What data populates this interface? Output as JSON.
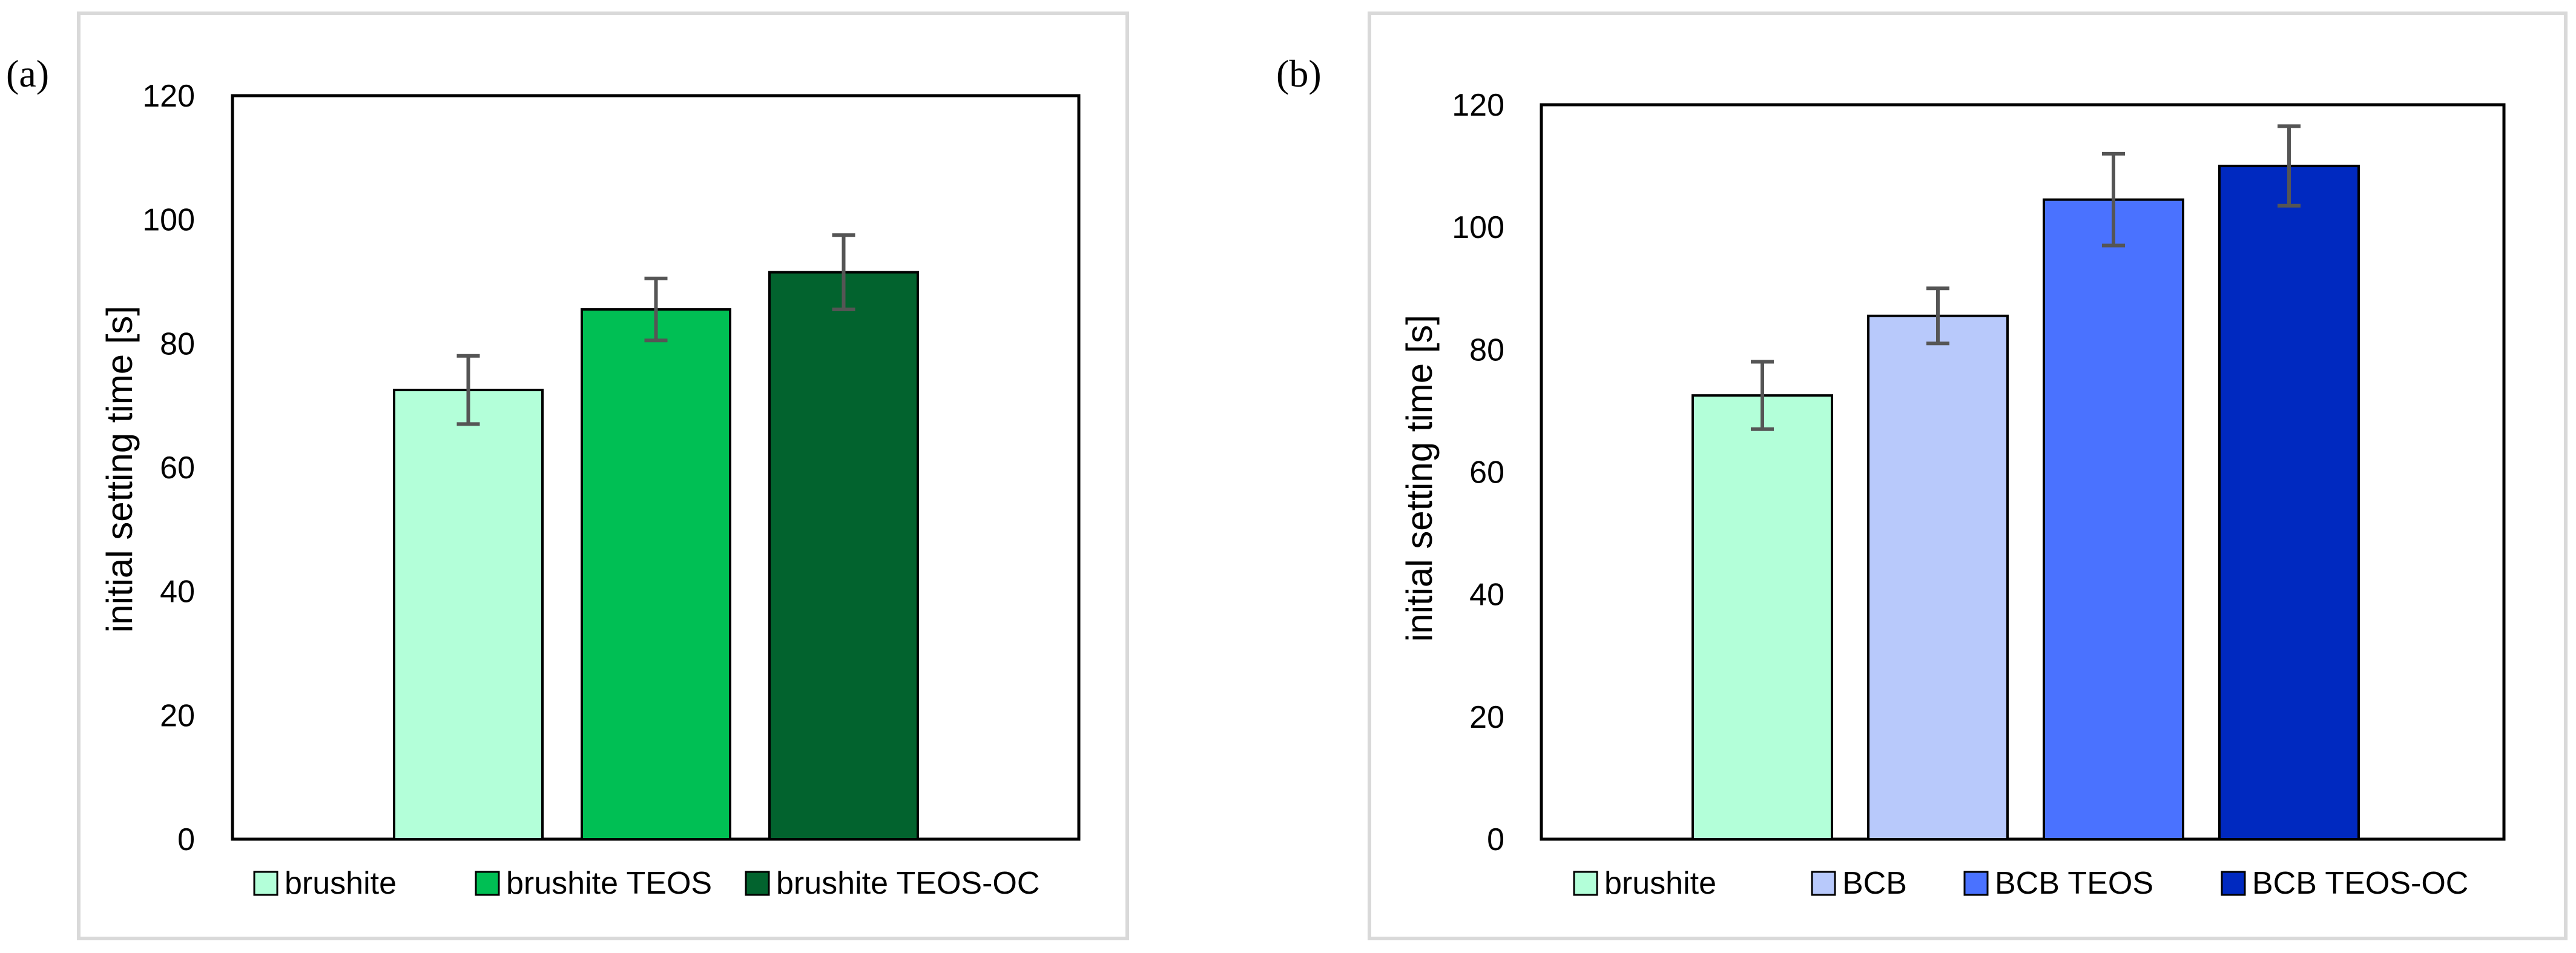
{
  "chart_data": [
    {
      "type": "bar",
      "panel_label": "(a)",
      "title": "",
      "xlabel": "",
      "ylabel": "initial setting time  [s]",
      "ylim": [
        0,
        120
      ],
      "yticks": [
        0,
        20,
        40,
        60,
        80,
        100,
        120
      ],
      "grid": false,
      "legend_position": "bottom",
      "series": [
        {
          "name": "brushite",
          "value": 72.5,
          "error": 5.5,
          "color": "#b3ffd9"
        },
        {
          "name": "brushite TEOS",
          "value": 85.5,
          "error": 5.0,
          "color": "#00bf54"
        },
        {
          "name": "brushite TEOS-OC",
          "value": 91.5,
          "error": 6.0,
          "color": "#02632e"
        }
      ]
    },
    {
      "type": "bar",
      "panel_label": "(b)",
      "title": "",
      "xlabel": "",
      "ylabel": "initial setting time  [s]",
      "ylim": [
        0,
        120
      ],
      "yticks": [
        0,
        20,
        40,
        60,
        80,
        100,
        120
      ],
      "grid": false,
      "legend_position": "bottom",
      "series": [
        {
          "name": "brushite",
          "value": 72.5,
          "error": 5.5,
          "color": "#b3ffd9"
        },
        {
          "name": "BCB",
          "value": 85.5,
          "error": 4.5,
          "color": "#b8c9fb"
        },
        {
          "name": "BCB TEOS",
          "value": 104.5,
          "error": 7.5,
          "color": "#4a72ff"
        },
        {
          "name": "BCB TEOS-OC",
          "value": 110.0,
          "error": 6.5,
          "color": "#0029c0"
        }
      ]
    }
  ]
}
